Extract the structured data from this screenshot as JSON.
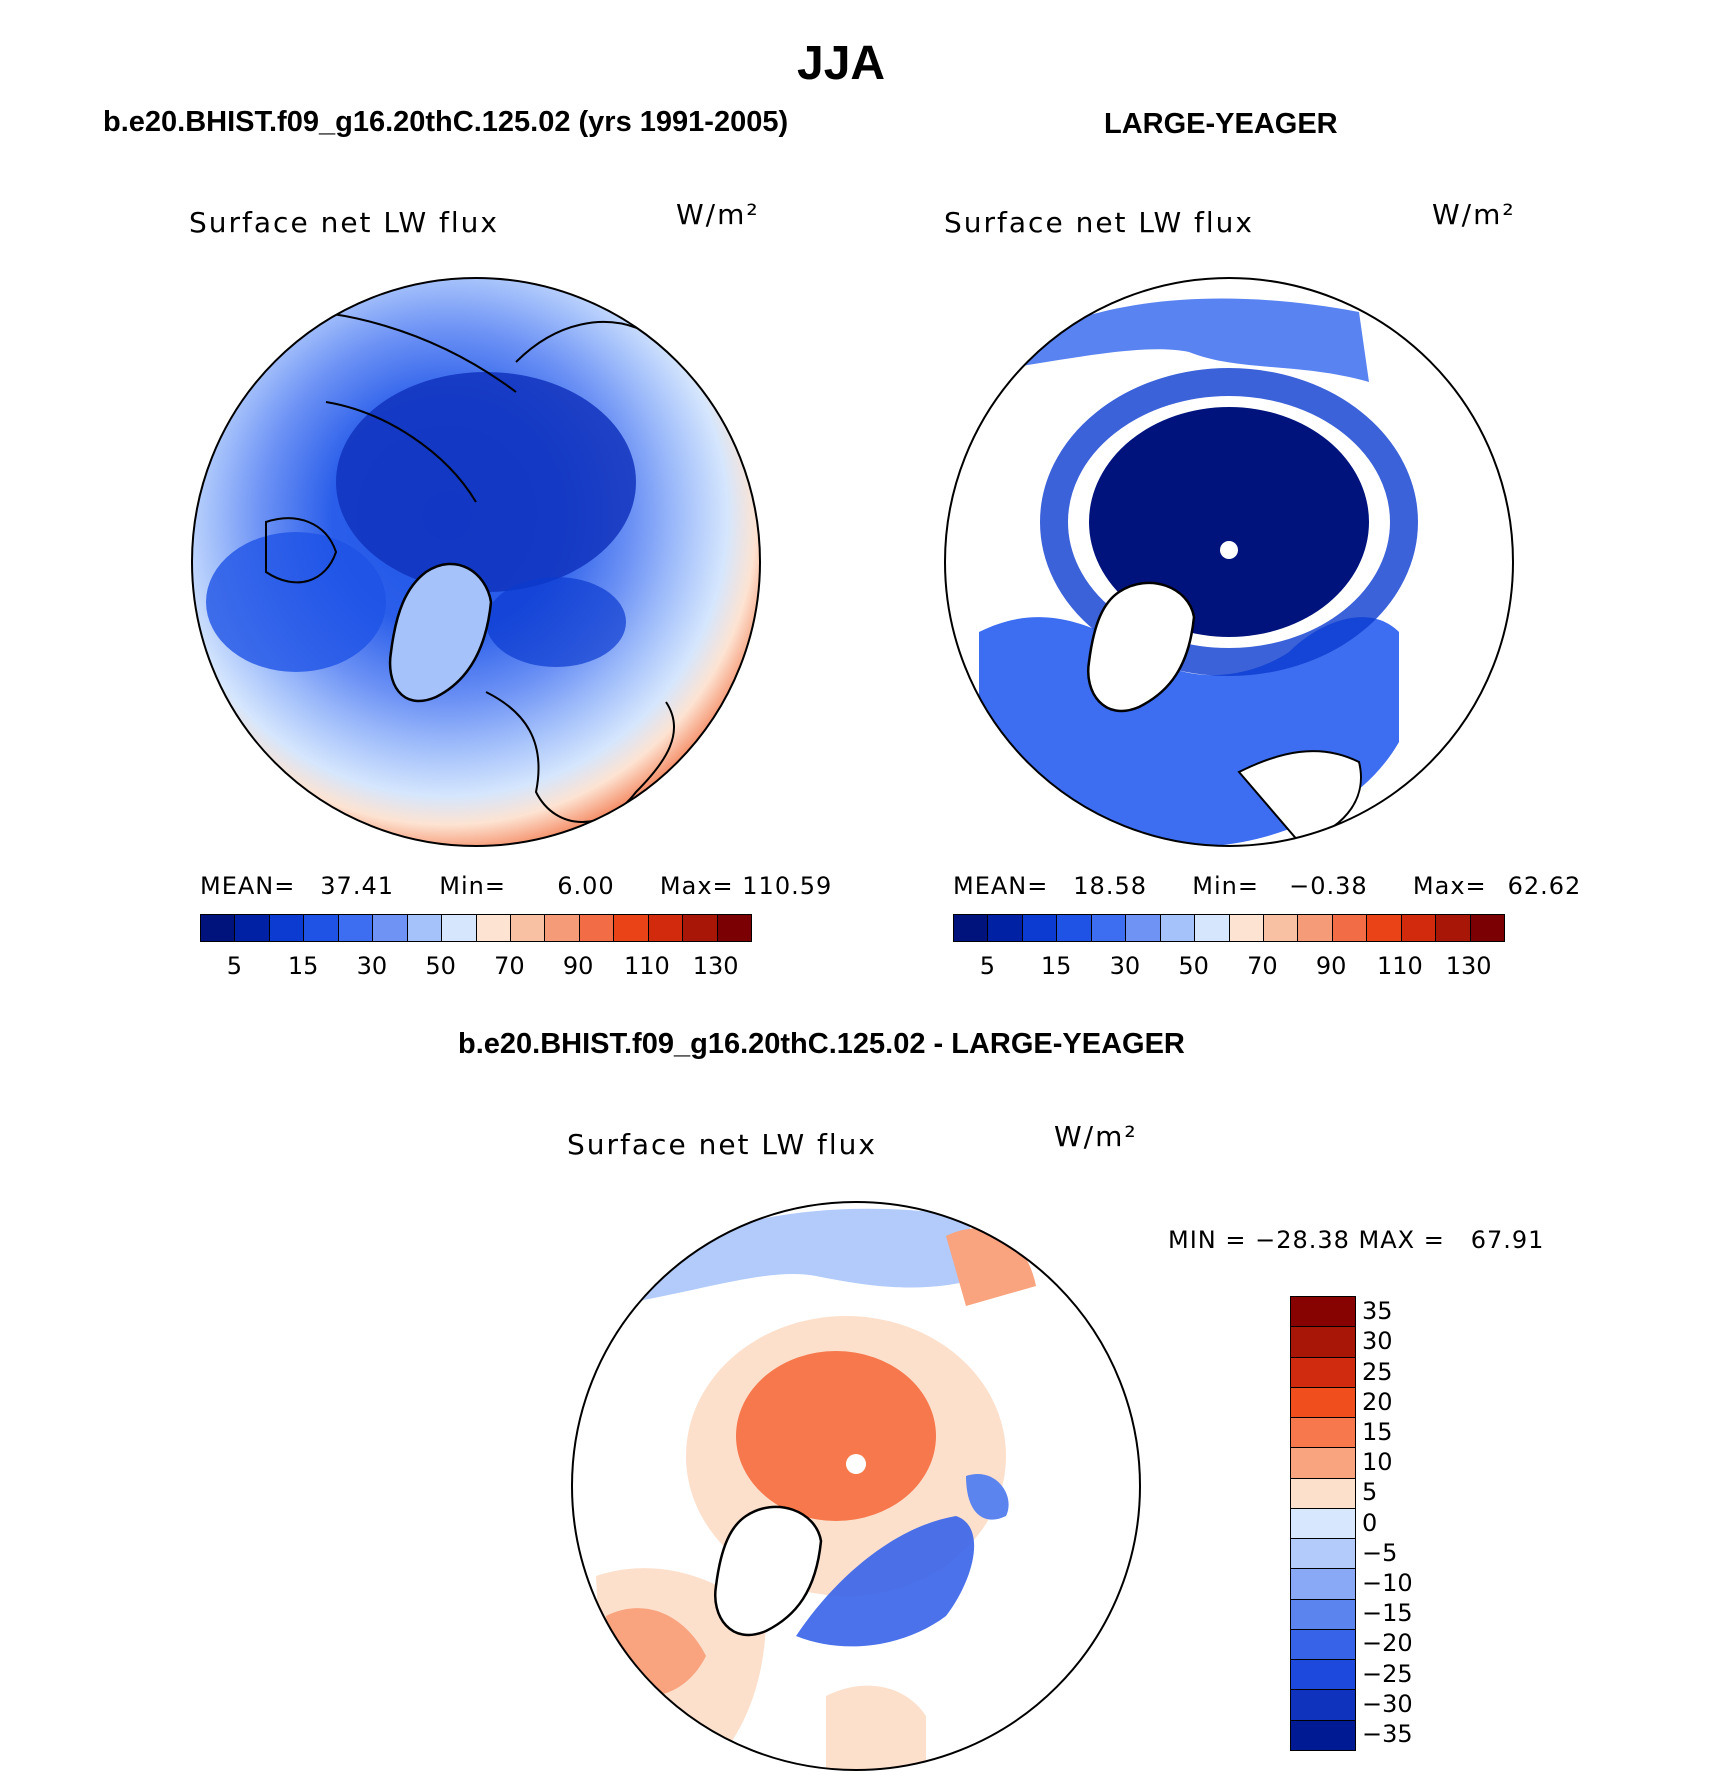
{
  "title": "JJA",
  "panels": {
    "model": {
      "case_title": "b.e20.BHIST.f09_g16.20thC.125.02 (yrs 1991-2005)",
      "field_title": "Surface net LW flux",
      "units": "W/m²",
      "stats": {
        "mean_label": "MEAN=",
        "mean": "37.41",
        "min_label": "Min=",
        "min": "6.00",
        "max_label": "Max=",
        "max": "110.59"
      }
    },
    "obs": {
      "case_title": "LARGE-YEAGER",
      "field_title": "Surface net LW flux",
      "units": "W/m²",
      "stats": {
        "mean_label": "MEAN=",
        "mean": "18.58",
        "min_label": "Min=",
        "min": "−0.38",
        "max_label": "Max=",
        "max": "62.62"
      }
    },
    "diff": {
      "case_title": "b.e20.BHIST.f09_g16.20thC.125.02 - LARGE-YEAGER",
      "field_title": "Surface net LW flux",
      "units": "W/m²",
      "stats": {
        "text": "MIN = −28.38 MAX =   67.91"
      }
    }
  },
  "colorbars": {
    "absolute": {
      "colors": [
        "#00137d",
        "#0021a4",
        "#0b3bd0",
        "#1e53e6",
        "#3d6df0",
        "#6e93f5",
        "#a6c2fb",
        "#d5e6fd",
        "#fde3d2",
        "#f9c1a4",
        "#f69b78",
        "#f26c45",
        "#ea4317",
        "#d12a0c",
        "#a71607",
        "#7a0004"
      ],
      "labels": [
        "5",
        "15",
        "30",
        "50",
        "70",
        "90",
        "110",
        "130"
      ]
    },
    "difference": {
      "colors_top_to_bottom": [
        "#860302",
        "#a71607",
        "#d02b0e",
        "#f04f1d",
        "#f6784c",
        "#f9a37f",
        "#fde0cc",
        "#d7e7fd",
        "#b2cbfb",
        "#89a9f6",
        "#5c84ef",
        "#3763e9",
        "#1d49dd",
        "#1033bd",
        "#001a94"
      ],
      "labels": [
        "35",
        "30",
        "25",
        "20",
        "15",
        "10",
        "5",
        "0",
        "−5",
        "−10",
        "−15",
        "−20",
        "−25",
        "−30",
        "−35"
      ]
    }
  },
  "icons": {
    "pole_marker": "north-pole-dot"
  }
}
